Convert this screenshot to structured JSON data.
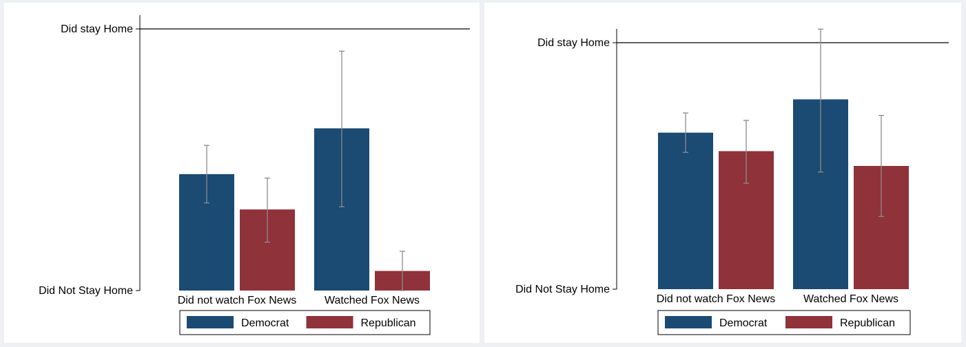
{
  "colors": {
    "democrat": "#1b4a72",
    "republican": "#8f323a",
    "error_bar": "#8c8c8c",
    "axis": "#000000"
  },
  "chart_data": [
    {
      "type": "bar",
      "categories": [
        "Did not watch Fox News",
        "Watched Fox News"
      ],
      "ylim": [
        0,
        1
      ],
      "yticks": [
        {
          "value": 0,
          "label": "Did Not Stay Home"
        },
        {
          "value": 1,
          "label": "Did stay Home"
        }
      ],
      "reference_line": 1,
      "grid": false,
      "legend_position": "bottom",
      "series": [
        {
          "name": "Democrat",
          "color_key": "democrat",
          "values": [
            0.445,
            0.62
          ],
          "ci_low": [
            0.335,
            0.32
          ],
          "ci_high": [
            0.555,
            0.915
          ]
        },
        {
          "name": "Republican",
          "color_key": "republican",
          "values": [
            0.31,
            0.075
          ],
          "ci_low": [
            0.185,
            0.0
          ],
          "ci_high": [
            0.43,
            0.15
          ]
        }
      ]
    },
    {
      "type": "bar",
      "categories": [
        "Did not watch Fox News",
        "Watched Fox News"
      ],
      "ylim": [
        0,
        1
      ],
      "yticks": [
        {
          "value": 0,
          "label": "Did Not Stay Home"
        },
        {
          "value": 1,
          "label": "Did stay Home"
        }
      ],
      "reference_line": 1,
      "grid": false,
      "legend_position": "bottom",
      "series": [
        {
          "name": "Democrat",
          "color_key": "democrat",
          "values": [
            0.635,
            0.77
          ],
          "ci_low": [
            0.555,
            0.475
          ],
          "ci_high": [
            0.715,
            1.055
          ]
        },
        {
          "name": "Republican",
          "color_key": "republican",
          "values": [
            0.56,
            0.5
          ],
          "ci_low": [
            0.43,
            0.295
          ],
          "ci_high": [
            0.685,
            0.705
          ]
        }
      ]
    }
  ]
}
